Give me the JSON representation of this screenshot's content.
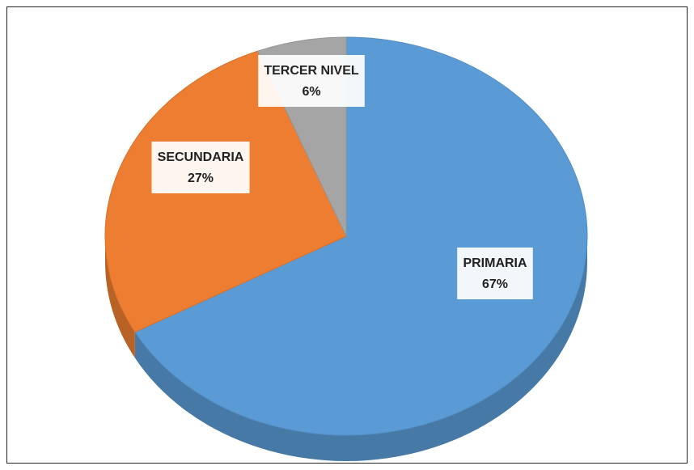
{
  "chart_data": {
    "type": "pie",
    "categories": [
      "PRIMARIA",
      "SECUNDARIA",
      "TERCER NIVEL"
    ],
    "values": [
      67,
      27,
      6
    ],
    "value_labels": [
      "67%",
      "27%",
      "6%"
    ],
    "colors": [
      "#5b9bd5",
      "#ed7d31",
      "#a5a5a5"
    ]
  }
}
